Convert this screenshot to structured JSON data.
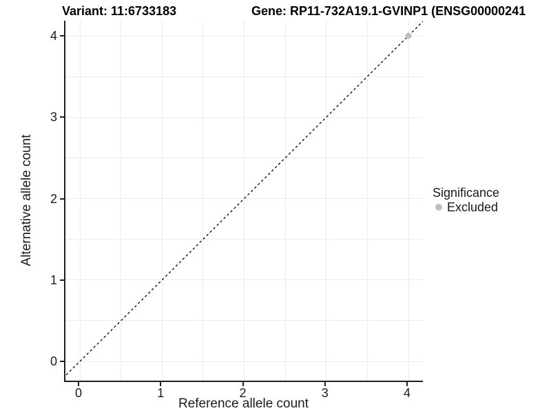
{
  "titles": {
    "variant": "Variant: 11:6733183",
    "gene": "Gene: RP11-732A19.1-GVINP1 (ENSG00000241"
  },
  "chart_data": {
    "type": "scatter",
    "title_left": "Variant: 11:6733183",
    "title_right": "Gene: RP11-732A19.1-GVINP1 (ENSG00000241",
    "xlabel": "Reference allele count",
    "ylabel": "Alternative allele count",
    "xlim": [
      -0.18,
      4.19
    ],
    "ylim": [
      -0.25,
      4.19
    ],
    "x_ticks": [
      0,
      1,
      2,
      3,
      4
    ],
    "y_ticks": [
      0,
      1,
      2,
      3,
      4
    ],
    "grid": {
      "on": true,
      "minor_step": 0.5,
      "color": "#ececec"
    },
    "reference_line": {
      "kind": "identity y=x",
      "style": "dashed",
      "color": "#000000"
    },
    "series": [
      {
        "name": "Excluded",
        "color": "#bebebe",
        "points": [
          {
            "x": 4,
            "y": 4
          }
        ]
      }
    ],
    "legend": {
      "title": "Significance",
      "position": "right",
      "entries": [
        {
          "label": "Excluded",
          "color": "#bebebe"
        }
      ]
    }
  },
  "colors": {
    "axis_line": "#1f1f1f",
    "grid": "#ececec",
    "point_gray": "#bebebe",
    "text": "#1a1a1a"
  }
}
